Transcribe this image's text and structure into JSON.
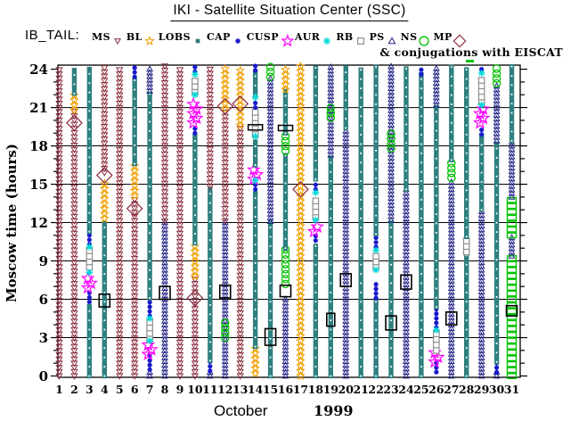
{
  "header": {
    "title": "IKI - Satellite Situation Center (SSC)",
    "dataset_label": "IB_TAIL:",
    "conjugation_note": "& conjugations with EISCAT"
  },
  "axes": {
    "ylabel": "Moscow time (hours)",
    "xlabel_month": "October",
    "xlabel_year": "1999"
  },
  "chart_data": {
    "type": "scatter",
    "subtype": "satellite-region-timeline",
    "title": "IKI - Satellite Situation Center (SSC)",
    "dataset": "IB_TAIL",
    "xlabel": "October 1999",
    "ylabel": "Moscow time (hours)",
    "ylim": [
      0,
      24.3
    ],
    "yticks": [
      0,
      3,
      6,
      9,
      12,
      15,
      18,
      21,
      24
    ],
    "grid": "horizontal-3h",
    "x_days": [
      1,
      2,
      3,
      4,
      5,
      6,
      7,
      8,
      9,
      10,
      11,
      12,
      13,
      14,
      15,
      16,
      17,
      18,
      19,
      20,
      21,
      22,
      23,
      24,
      25,
      26,
      27,
      28,
      29,
      30,
      31
    ],
    "legend": [
      {
        "label": "MS",
        "sym": "MS"
      },
      {
        "label": "BL",
        "sym": "BL"
      },
      {
        "label": "LOBS",
        "sym": "LOBS"
      },
      {
        "label": "CAP",
        "sym": "CAP"
      },
      {
        "label": "CUSP",
        "sym": "CUSP"
      },
      {
        "label": "AUR",
        "sym": "AUR"
      },
      {
        "label": "RB",
        "sym": "RB"
      },
      {
        "label": "PS",
        "sym": "PS"
      },
      {
        "label": "NS",
        "sym": "NS"
      },
      {
        "label": "MP",
        "sym": "MP"
      }
    ],
    "symbols": {
      "MS": {
        "glyph": "open-triangle-down",
        "color": "#8b2c3e"
      },
      "BL": {
        "glyph": "open-star",
        "color": "#f0a000"
      },
      "LOBS": {
        "glyph": "filled-square",
        "color": "#2e7f7f"
      },
      "CAP": {
        "glyph": "filled-circle",
        "color": "#1a1acd"
      },
      "CUSP": {
        "glyph": "open-star-large",
        "color": "#ff00ff"
      },
      "AUR": {
        "glyph": "asterisk",
        "color": "#00d8d8"
      },
      "RB": {
        "glyph": "open-square",
        "color": "#8f8f8f"
      },
      "PS": {
        "glyph": "open-triangle-up",
        "color": "#232387"
      },
      "NS": {
        "glyph": "open-circle",
        "color": "#00c300"
      },
      "MP": {
        "glyph": "open-diamond",
        "color": "#8b2c3e"
      },
      "ER": {
        "glyph": "open-rect",
        "color": "#000000"
      },
      "ERS": {
        "glyph": "open-rect-small",
        "color": "#000000"
      },
      "ERB": {
        "glyph": "open-bar",
        "color": "#000000"
      },
      "GR": {
        "glyph": "open-rect-chain",
        "color": "#00c300"
      }
    },
    "days": [
      {
        "d": 1,
        "segments": [
          [
            "MS",
            0,
            24.3
          ]
        ],
        "markers": []
      },
      {
        "d": 2,
        "segments": [
          [
            "MS",
            0,
            20.8
          ],
          [
            "BL",
            20.8,
            22.1
          ],
          [
            "LOBS",
            22.1,
            24.3
          ]
        ],
        "markers": [
          [
            "MP",
            19.8
          ]
        ]
      },
      {
        "d": 3,
        "segments": [
          [
            "LOBS",
            0,
            5.7
          ],
          [
            "CAP",
            5.8,
            6.8
          ],
          [
            "CUSP",
            6.9,
            7.8
          ],
          [
            "RB",
            8.5,
            9.9
          ],
          [
            "CAP",
            10.3,
            11.3
          ],
          [
            "LOBS",
            11.3,
            24.3
          ]
        ],
        "markers": [
          [
            "AUR",
            8.1
          ],
          [
            "AUR",
            10.1
          ]
        ]
      },
      {
        "d": 4,
        "segments": [
          [
            "LOBS",
            0,
            12.3
          ],
          [
            "BL",
            12.3,
            15.4
          ],
          [
            "MS",
            15.9,
            24.3
          ]
        ],
        "markers": [
          [
            "MP",
            15.7
          ],
          [
            "ER",
            5.4,
            6.4
          ]
        ]
      },
      {
        "d": 5,
        "segments": [
          [
            "MS",
            0,
            24.3
          ]
        ],
        "markers": []
      },
      {
        "d": 6,
        "segments": [
          [
            "MS",
            0,
            14.0
          ],
          [
            "BL",
            14.1,
            16.6
          ],
          [
            "LOBS",
            16.6,
            23.4
          ],
          [
            "CAP",
            23.4,
            24.3
          ]
        ],
        "markers": [
          [
            "MP",
            13.1
          ]
        ]
      },
      {
        "d": 7,
        "segments": [
          [
            "PS",
            0,
            0.5
          ],
          [
            "CAP",
            0.5,
            1.6
          ],
          [
            "CUSP",
            1.7,
            2.6
          ],
          [
            "RB",
            2.9,
            4.3
          ],
          [
            "CAP",
            4.7,
            6.1
          ],
          [
            "LOBS",
            6.1,
            22.3
          ],
          [
            "PS",
            22.3,
            24.3
          ]
        ],
        "markers": [
          [
            "AUR",
            2.75
          ],
          [
            "AUR",
            4.5
          ]
        ]
      },
      {
        "d": 8,
        "segments": [
          [
            "PS",
            0,
            12.1
          ],
          [
            "MS",
            12.1,
            24.3
          ]
        ],
        "markers": [
          [
            "ER",
            6.0,
            7.0
          ]
        ]
      },
      {
        "d": 9,
        "segments": [
          [
            "MS",
            0,
            24.3
          ]
        ],
        "markers": []
      },
      {
        "d": 10,
        "segments": [
          [
            "MS",
            0,
            7.8
          ],
          [
            "BL",
            7.8,
            10.4
          ],
          [
            "LOBS",
            10.4,
            18.9
          ],
          [
            "CAP",
            19.0,
            19.6
          ],
          [
            "CUSP",
            19.8,
            21.4
          ],
          [
            "RB",
            22.2,
            23.3
          ],
          [
            "CAP",
            23.8,
            24.3
          ]
        ],
        "markers": [
          [
            "MP",
            6.1
          ],
          [
            "AUR",
            22.0
          ],
          [
            "AUR",
            23.6
          ]
        ]
      },
      {
        "d": 11,
        "segments": [
          [
            "PS",
            0,
            0.4
          ],
          [
            "CAP",
            0.4,
            1.2
          ],
          [
            "LOBS",
            1.2,
            14.8
          ],
          [
            "MS",
            14.8,
            24.3
          ]
        ],
        "markers": []
      },
      {
        "d": 12,
        "segments": [
          [
            "PS",
            0,
            12.1
          ],
          [
            "MS",
            12.1,
            20.9
          ],
          [
            "BL",
            20.9,
            24.3
          ]
        ],
        "markers": [
          [
            "MP",
            21.1
          ],
          [
            "ER",
            6.1,
            7.1
          ],
          [
            "NS",
            3.0,
            4.4
          ]
        ]
      },
      {
        "d": 13,
        "segments": [
          [
            "MS",
            0,
            19.6
          ],
          [
            "BL",
            19.6,
            24.3
          ]
        ],
        "markers": [
          [
            "MP",
            21.3
          ]
        ]
      },
      {
        "d": 14,
        "segments": [
          [
            "BL",
            0.2,
            2.3
          ],
          [
            "LOBS",
            2.3,
            14.5
          ],
          [
            "CAP",
            14.6,
            15.2
          ],
          [
            "CUSP",
            15.4,
            16.4
          ],
          [
            "LOBS",
            16.5,
            18.6
          ],
          [
            "RB",
            18.9,
            21.0
          ],
          [
            "CAP",
            21.0,
            21.6
          ],
          [
            "LOBS",
            22.0,
            23.9
          ],
          [
            "CAP",
            23.9,
            24.3
          ]
        ],
        "markers": [
          [
            "AUR",
            15.3
          ],
          [
            "AUR",
            18.75
          ],
          [
            "AUR",
            21.8
          ],
          [
            "ERB",
            19.45
          ]
        ]
      },
      {
        "d": 15,
        "segments": [
          [
            "LOBS",
            0,
            12.1
          ],
          [
            "PS",
            12.1,
            23.4
          ],
          [
            "NS",
            23.4,
            24.3
          ]
        ],
        "markers": [
          [
            "ER",
            2.4,
            3.7
          ]
        ]
      },
      {
        "d": 16,
        "segments": [
          [
            "PS",
            0,
            6.1
          ],
          [
            "NS",
            7.2,
            10.0
          ],
          [
            "LOBS",
            10.0,
            17.6
          ],
          [
            "NS",
            17.6,
            19.0
          ],
          [
            "LOBS",
            19.0,
            22.4
          ],
          [
            "BL",
            22.4,
            24.3
          ]
        ],
        "markers": [
          [
            "ER",
            6.2,
            7.1
          ],
          [
            "ERB",
            19.4
          ]
        ]
      },
      {
        "d": 17,
        "segments": [
          [
            "BL",
            0,
            24.3
          ]
        ],
        "markers": [
          [
            "MP",
            14.6
          ]
        ]
      },
      {
        "d": 18,
        "segments": [
          [
            "LOBS",
            0,
            10.5
          ],
          [
            "CAP",
            10.6,
            11.2
          ],
          [
            "CUSP",
            11.3,
            12.0
          ],
          [
            "RB",
            12.4,
            14.1
          ],
          [
            "CAP",
            14.6,
            15.3
          ],
          [
            "LOBS",
            15.4,
            24.3
          ]
        ],
        "markers": [
          [
            "AUR",
            12.2
          ],
          [
            "AUR",
            14.35
          ]
        ]
      },
      {
        "d": 19,
        "segments": [
          [
            "LOBS",
            0,
            17.3
          ],
          [
            "PS",
            17.3,
            24.3
          ]
        ],
        "markers": [
          [
            "NS",
            20.2,
            21.2
          ],
          [
            "ERS",
            3.9,
            4.9
          ]
        ]
      },
      {
        "d": 20,
        "segments": [
          [
            "PS",
            0,
            19.4
          ],
          [
            "LOBS",
            19.4,
            24.3
          ]
        ],
        "markers": [
          [
            "ER",
            7.0,
            8.0
          ]
        ]
      },
      {
        "d": 21,
        "segments": [
          [
            "LOBS",
            0,
            24.3
          ]
        ],
        "markers": []
      },
      {
        "d": 22,
        "segments": [
          [
            "LOBS",
            0,
            5.9
          ],
          [
            "CAP",
            6.1,
            7.4
          ],
          [
            "RB",
            8.5,
            9.6
          ],
          [
            "CAP",
            10.1,
            11.1
          ],
          [
            "LOBS",
            11.1,
            24.3
          ]
        ],
        "markers": [
          [
            "AUR",
            8.3
          ],
          [
            "AUR",
            9.85
          ]
        ]
      },
      {
        "d": 23,
        "segments": [
          [
            "LOBS",
            0,
            12.2
          ],
          [
            "PS",
            12.2,
            24.3
          ]
        ],
        "markers": [
          [
            "NS",
            17.8,
            19.2
          ],
          [
            "ER",
            3.6,
            4.7
          ]
        ]
      },
      {
        "d": 24,
        "segments": [
          [
            "PS",
            0,
            14.6
          ],
          [
            "LOBS",
            14.6,
            24.3
          ]
        ],
        "markers": [
          [
            "ER",
            6.8,
            7.9
          ]
        ]
      },
      {
        "d": 25,
        "segments": [
          [
            "LOBS",
            0,
            23.6
          ],
          [
            "CAP",
            23.6,
            24.3
          ]
        ],
        "markers": []
      },
      {
        "d": 26,
        "segments": [
          [
            "CAP",
            0.3,
            1.1
          ],
          [
            "CUSP",
            1.1,
            1.9
          ],
          [
            "RB",
            2.0,
            3.4
          ],
          [
            "CAP",
            3.8,
            5.4
          ],
          [
            "LOBS",
            5.4,
            21.2
          ],
          [
            "PS",
            21.2,
            24.3
          ]
        ],
        "markers": [
          [
            "AUR",
            3.6
          ]
        ]
      },
      {
        "d": 27,
        "segments": [
          [
            "PS",
            0,
            15.4
          ],
          [
            "NS",
            15.5,
            16.8
          ],
          [
            "LOBS",
            16.9,
            24.3
          ]
        ],
        "markers": [
          [
            "ER",
            4.0,
            5.0
          ]
        ]
      },
      {
        "d": 28,
        "segments": [
          [
            "LOBS",
            0,
            9.5
          ],
          [
            "RB",
            9.7,
            10.9
          ],
          [
            "LOBS",
            10.9,
            24.3
          ]
        ],
        "markers": []
      },
      {
        "d": 29,
        "segments": [
          [
            "PS",
            0,
            13.0
          ],
          [
            "LOBS",
            13.0,
            18.8
          ],
          [
            "CAP",
            18.9,
            19.6
          ],
          [
            "CUSP",
            19.8,
            21.0
          ],
          [
            "RB",
            21.4,
            23.5
          ],
          [
            "CAP",
            24.0,
            24.3
          ]
        ],
        "markers": [
          [
            "AUR",
            21.2
          ],
          [
            "AUR",
            23.7
          ]
        ]
      },
      {
        "d": 30,
        "segments": [
          [
            "PS",
            0,
            0.3
          ],
          [
            "CAP",
            0.3,
            1.1
          ],
          [
            "LOBS",
            1.1,
            18.4
          ],
          [
            "PS",
            18.4,
            22.9
          ],
          [
            "NS",
            22.9,
            24.3
          ]
        ],
        "markers": []
      },
      {
        "d": 31,
        "segments": [
          [
            "GR",
            0,
            9.4
          ],
          [
            "PS",
            9.4,
            11.0
          ],
          [
            "GR",
            11.0,
            14.0
          ],
          [
            "PS",
            14.0,
            18.4
          ],
          [
            "LOBS",
            18.4,
            24.3
          ]
        ],
        "markers": [
          [
            "ER",
            4.7,
            5.5
          ]
        ]
      }
    ]
  }
}
